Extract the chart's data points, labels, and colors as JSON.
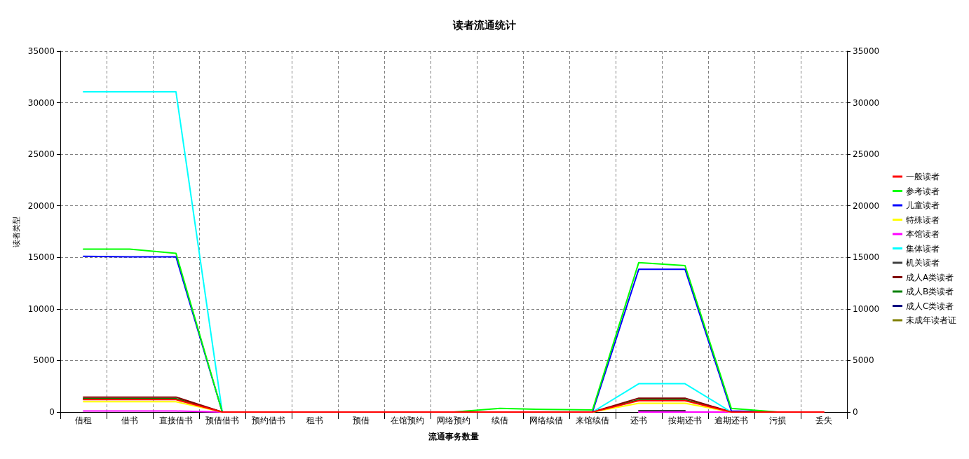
{
  "chart_data": {
    "type": "line",
    "title": "读者流通统计",
    "xlabel": "流通事务数量",
    "ylabel": "读者类型",
    "categories": [
      "借租",
      "借书",
      "直接借书",
      "预借借书",
      "预约借书",
      "租书",
      "预借",
      "在馆预约",
      "网络预约",
      "续借",
      "网络续借",
      "来馆续借",
      "还书",
      "按期还书",
      "逾期还书",
      "污损",
      "丢失"
    ],
    "series": [
      {
        "name": "一般读者",
        "color": "#ff0000",
        "values": [
          1200,
          1200,
          1200,
          0,
          0,
          0,
          0,
          0,
          0,
          0,
          0,
          0,
          1100,
          1100,
          0,
          0,
          0
        ]
      },
      {
        "name": "参考读者",
        "color": "#00ff00",
        "values": [
          15800,
          15800,
          15400,
          0,
          null,
          null,
          null,
          null,
          0,
          350,
          250,
          200,
          14500,
          14200,
          350,
          0,
          null
        ]
      },
      {
        "name": "儿童读者",
        "color": "#0000ff",
        "values": [
          15100,
          15050,
          15050,
          0,
          null,
          null,
          null,
          null,
          null,
          null,
          null,
          0,
          13850,
          13850,
          100,
          0,
          null
        ]
      },
      {
        "name": "特殊读者",
        "color": "#ffff00",
        "values": [
          1000,
          1000,
          1000,
          0,
          null,
          null,
          null,
          null,
          null,
          null,
          null,
          0,
          850,
          850,
          0,
          null,
          null
        ]
      },
      {
        "name": "本馆读者",
        "color": "#ff00ff",
        "values": [
          100,
          100,
          100,
          0,
          null,
          null,
          null,
          null,
          null,
          null,
          null,
          null,
          0,
          0,
          0,
          null,
          null
        ]
      },
      {
        "name": "集体读者",
        "color": "#00ffff",
        "values": [
          31050,
          31050,
          31050,
          0,
          null,
          null,
          null,
          null,
          null,
          null,
          null,
          0,
          2750,
          2750,
          0,
          null,
          null
        ]
      },
      {
        "name": "机关读者",
        "color": "#404040",
        "values": [
          null,
          null,
          null,
          null,
          null,
          null,
          null,
          null,
          null,
          null,
          null,
          null,
          130,
          130,
          null,
          null,
          null
        ]
      },
      {
        "name": "成人A类读者",
        "color": "#800000",
        "values": [
          1450,
          1450,
          1450,
          0,
          null,
          null,
          null,
          null,
          null,
          null,
          null,
          0,
          1350,
          1350,
          0,
          null,
          null
        ]
      },
      {
        "name": "成人B类读者",
        "color": "#008000",
        "values": [
          1300,
          1300,
          1300,
          0,
          null,
          null,
          null,
          null,
          null,
          null,
          null,
          0,
          1200,
          1200,
          0,
          null,
          null
        ]
      },
      {
        "name": "成人C类读者",
        "color": "#000080",
        "values": [
          null,
          null,
          null,
          null,
          null,
          null,
          null,
          null,
          null,
          null,
          null,
          null,
          null,
          null,
          null,
          null,
          null
        ]
      },
      {
        "name": "未成年读者证",
        "color": "#808000",
        "values": [
          null,
          null,
          null,
          null,
          null,
          null,
          null,
          null,
          null,
          null,
          null,
          null,
          null,
          null,
          null,
          null,
          null
        ]
      }
    ],
    "ylim": [
      0,
      35000
    ],
    "yticks": [
      0,
      5000,
      10000,
      15000,
      20000,
      25000,
      30000,
      35000
    ],
    "y2lim": [
      0,
      35000
    ],
    "y2ticks": [
      0,
      5000,
      10000,
      15000,
      20000,
      25000,
      30000,
      35000
    ],
    "grid": true,
    "legend": "right",
    "marker": "none",
    "line_style": "solid"
  }
}
